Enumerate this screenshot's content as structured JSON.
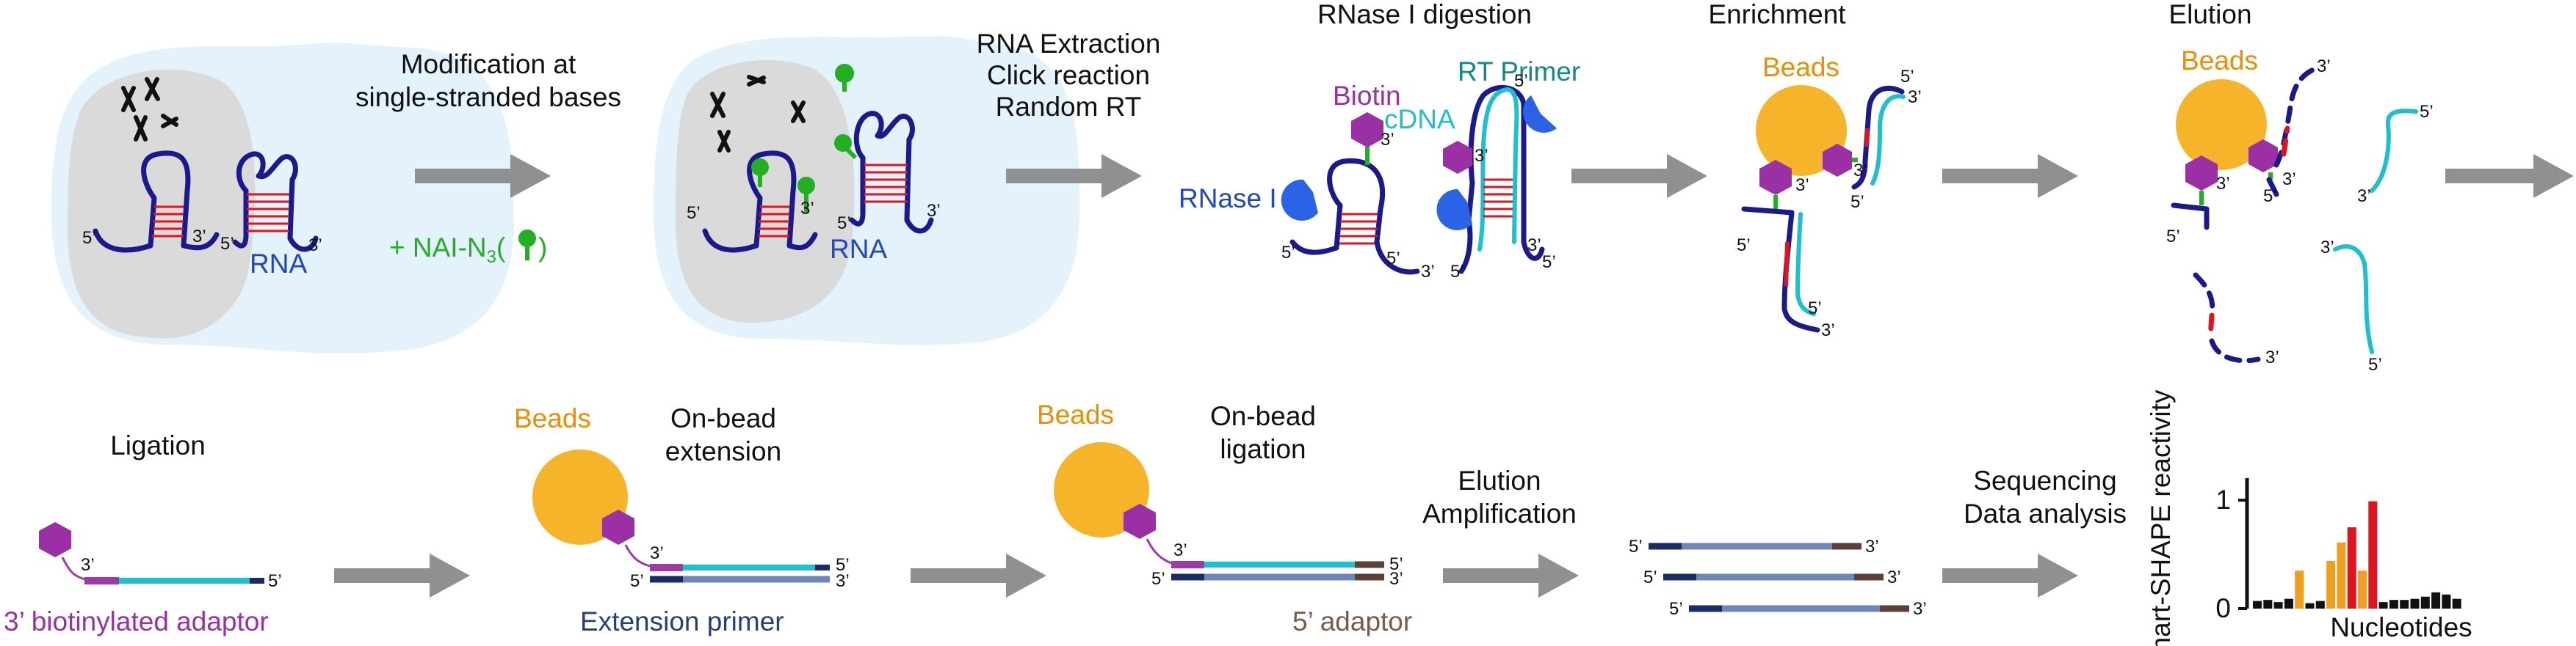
{
  "labels": {
    "modification": [
      "Modification at",
      "single-stranded bases"
    ],
    "nai_prefix": "+ NAI-N",
    "nai_sub": "3",
    "rna": "RNA",
    "extraction": [
      "RNA Extraction",
      "Click reaction",
      "Random RT"
    ],
    "rnase_title": "RNase I digestion",
    "biotin": "Biotin",
    "cdna": "cDNA",
    "rt_primer": "RT Primer",
    "rnase_i": "RNase I",
    "enrichment": "Enrichment",
    "elution_title": "Elution",
    "beads": "Beads",
    "ligation": "Ligation",
    "biotinylated_adaptor": "3’ biotinylated adaptor",
    "on_bead_extension": [
      "On-bead",
      "extension"
    ],
    "extension_primer": "Extension primer",
    "on_bead_ligation": [
      "On-bead",
      "ligation"
    ],
    "five_adaptor": "5’ adaptor",
    "elution_amp": [
      "Elution",
      "Amplification"
    ],
    "seq_analysis": [
      "Sequencing",
      "Data analysis"
    ],
    "five_prime": "5’",
    "three_prime": "3’"
  },
  "colors": {
    "cell": "#e3f2fb",
    "nucleus": "#dadada",
    "rna": "#1a1a8c",
    "pair": "#e0141e",
    "nai": "#22b022",
    "cdna": "#1ec0d0",
    "biotin": "#9b2fa6",
    "rnase": "#2a63e6",
    "beads": "#f5b42a",
    "arrow": "#909090",
    "label_blue": "#1f47c4",
    "label_teal": "#0f8a8a",
    "label_orange": "#f08c00",
    "label_purple": "#9b2fa6",
    "label_navy": "#24407c",
    "label_brown": "#7a5a48",
    "label_green": "#22b022"
  },
  "chart_data": {
    "type": "bar",
    "ylabel": "Smart-SHAPE reactivity",
    "xlabel": "Nucleotides",
    "yticks": [
      "0",
      "1"
    ],
    "ylim": [
      0,
      1.15
    ],
    "values": [
      0.07,
      0.08,
      0.06,
      0.09,
      0.35,
      0.05,
      0.07,
      0.44,
      0.61,
      0.75,
      0.35,
      0.99,
      0.06,
      0.08,
      0.08,
      0.09,
      0.11,
      0.15,
      0.13,
      0.09
    ],
    "bar_colors": [
      "#111111",
      "#111111",
      "#111111",
      "#111111",
      "#f0a020",
      "#111111",
      "#111111",
      "#f0a020",
      "#f0a020",
      "#e0141e",
      "#f0a020",
      "#e0141e",
      "#111111",
      "#111111",
      "#111111",
      "#111111",
      "#111111",
      "#111111",
      "#111111",
      "#111111"
    ]
  }
}
